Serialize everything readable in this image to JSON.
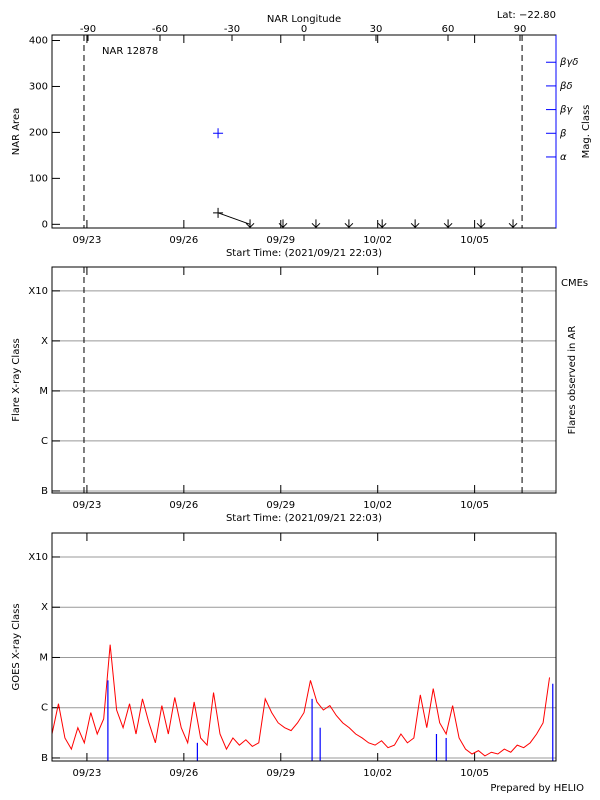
{
  "chart_data": [
    {
      "type": "line",
      "title": "NAR 12878",
      "annotation": "Lat: −22.80",
      "xlabel": "Start Time: (2021/09/21 22:03)",
      "ylabel": "NAR Area",
      "y2label": "Mag. Class",
      "x2label": "NAR Longitude",
      "xlim": [
        0,
        15.6
      ],
      "xticks": [
        {
          "value": 1.081,
          "label": "09/23"
        },
        {
          "value": 4.081,
          "label": "09/26"
        },
        {
          "value": 7.081,
          "label": "09/29"
        },
        {
          "value": 10.081,
          "label": "10/02"
        },
        {
          "value": 13.081,
          "label": "10/05"
        }
      ],
      "x2lim": [
        -105,
        105
      ],
      "x2ticks": [
        -90,
        -60,
        -30,
        0,
        30,
        60,
        90
      ],
      "ylim": [
        -8,
        412
      ],
      "yticks": [
        0,
        100,
        200,
        300,
        400
      ],
      "y2lim": [
        -2,
        6.15
      ],
      "y2ticks": [
        {
          "value": 1,
          "label": "α"
        },
        {
          "value": 2,
          "label": "β"
        },
        {
          "value": 3,
          "label": "βγ"
        },
        {
          "value": 4,
          "label": "βδ"
        },
        {
          "value": 5,
          "label": "βγδ"
        }
      ],
      "y2color": "#0000ff",
      "vlines": [
        0.99,
        14.55
      ],
      "series": [
        {
          "color": "#000000",
          "x": [
            5.14,
            6.13
          ],
          "values": [
            25,
            0
          ],
          "markers": [
            "plus",
            "arrow"
          ],
          "line": true
        },
        {
          "color": "#000000",
          "x": [
            7.15,
            8.17,
            9.19,
            10.22,
            11.24,
            12.26,
            13.28,
            14.27
          ],
          "values": [
            0,
            0,
            0,
            0,
            0,
            0,
            0,
            0
          ],
          "markers": [
            "arrow",
            "arrow",
            "arrow",
            "arrow",
            "arrow",
            "arrow",
            "arrow",
            "arrow"
          ],
          "line": false
        },
        {
          "color": "#0000ff",
          "axis": "y2",
          "x": [
            5.14
          ],
          "values": [
            2
          ],
          "markers": [
            "plus"
          ],
          "line": false
        }
      ]
    },
    {
      "type": "line",
      "xlabel": "Start Time: (2021/09/21 22:03)",
      "ylabel": "Flare X-ray Class",
      "y2label": "Flares observed in AR",
      "annotation": "CMEs",
      "annotation_color": "#ff0000",
      "xlim": [
        0,
        15.6
      ],
      "xticks": [
        {
          "value": 1.081,
          "label": "09/23"
        },
        {
          "value": 4.081,
          "label": "09/26"
        },
        {
          "value": 7.081,
          "label": "09/29"
        },
        {
          "value": 10.081,
          "label": "10/02"
        },
        {
          "value": 13.081,
          "label": "10/05"
        }
      ],
      "ylog": true,
      "ylim": [
        9.1e-08,
        0.003
      ],
      "yticks": [
        {
          "value": 1e-07,
          "label": "B"
        },
        {
          "value": 1e-06,
          "label": "C"
        },
        {
          "value": 1e-05,
          "label": "M"
        },
        {
          "value": 0.0001,
          "label": "X"
        },
        {
          "value": 0.001,
          "label": "X10"
        }
      ],
      "grid": true,
      "vlines": [
        0.99,
        14.55
      ],
      "series": []
    },
    {
      "type": "line",
      "ylabel": "GOES X-ray Class",
      "annotation": "Prepared by HELIO",
      "xlim": [
        0,
        15.6
      ],
      "xticks": [
        {
          "value": 1.081,
          "label": "09/23"
        },
        {
          "value": 4.081,
          "label": "09/26"
        },
        {
          "value": 7.081,
          "label": "09/29"
        },
        {
          "value": 10.081,
          "label": "10/02"
        },
        {
          "value": 13.081,
          "label": "10/05"
        }
      ],
      "ylog": true,
      "ylim": [
        8.7e-08,
        0.003
      ],
      "yticks": [
        {
          "value": 1e-07,
          "label": "B"
        },
        {
          "value": 1e-06,
          "label": "C"
        },
        {
          "value": 1e-05,
          "label": "M"
        },
        {
          "value": 0.0001,
          "label": "X"
        },
        {
          "value": 0.001,
          "label": "X10"
        }
      ],
      "grid": true,
      "series": [
        {
          "color": "#ff0000",
          "x": [
            0,
            0.2,
            0.4,
            0.6,
            0.8,
            1,
            1.2,
            1.4,
            1.6,
            1.8,
            2,
            2.2,
            2.4,
            2.6,
            2.8,
            3,
            3.2,
            3.4,
            3.6,
            3.8,
            4,
            4.2,
            4.4,
            4.6,
            4.8,
            5,
            5.2,
            5.4,
            5.6,
            5.8,
            6,
            6.2,
            6.4,
            6.6,
            6.8,
            7,
            7.2,
            7.4,
            7.6,
            7.8,
            8,
            8.2,
            8.4,
            8.6,
            8.8,
            9,
            9.2,
            9.4,
            9.6,
            9.8,
            10,
            10.2,
            10.4,
            10.6,
            10.8,
            11,
            11.2,
            11.4,
            11.6,
            11.8,
            12,
            12.2,
            12.4,
            12.6,
            12.8,
            13,
            13.2,
            13.4,
            13.6,
            13.8,
            14,
            14.2,
            14.4,
            14.6,
            14.8,
            15,
            15.2,
            15.4
          ],
          "values": [
            3e-07,
            1.2e-06,
            2.5e-07,
            1.5e-07,
            4e-07,
            2e-07,
            8e-07,
            3e-07,
            6e-07,
            1.8e-05,
            9e-07,
            4e-07,
            1.2e-06,
            3e-07,
            1.5e-06,
            5e-07,
            2e-07,
            1.1e-06,
            3e-07,
            1.6e-06,
            4e-07,
            2e-07,
            1.3e-06,
            2.5e-07,
            1.8e-07,
            2e-06,
            3e-07,
            1.5e-07,
            2.5e-07,
            1.8e-07,
            2.3e-07,
            1.7e-07,
            2e-07,
            1.5e-06,
            8e-07,
            5e-07,
            4e-07,
            3.5e-07,
            5e-07,
            8e-07,
            3.5e-06,
            1.3e-06,
            9e-07,
            1.1e-06,
            7e-07,
            5e-07,
            4e-07,
            3e-07,
            2.5e-07,
            2e-07,
            1.8e-07,
            2.2e-07,
            1.6e-07,
            1.8e-07,
            3e-07,
            2e-07,
            2.5e-07,
            1.8e-06,
            4e-07,
            2.4e-06,
            5e-07,
            3e-07,
            1.1e-06,
            2.5e-07,
            1.5e-07,
            1.2e-07,
            1.4e-07,
            1.1e-07,
            1.3e-07,
            1.2e-07,
            1.5e-07,
            1.3e-07,
            1.8e-07,
            1.6e-07,
            2e-07,
            3e-07,
            5e-07,
            4e-06
          ]
        },
        {
          "color": "#0000ff",
          "style": "spikes",
          "x": [
            1.73,
            4.5,
            8.05,
            8.3,
            11.9,
            12.2,
            15.5
          ],
          "values": [
            3.5e-06,
            2e-07,
            1.5e-06,
            4e-07,
            3e-07,
            2.5e-07,
            3e-06
          ]
        }
      ]
    }
  ]
}
